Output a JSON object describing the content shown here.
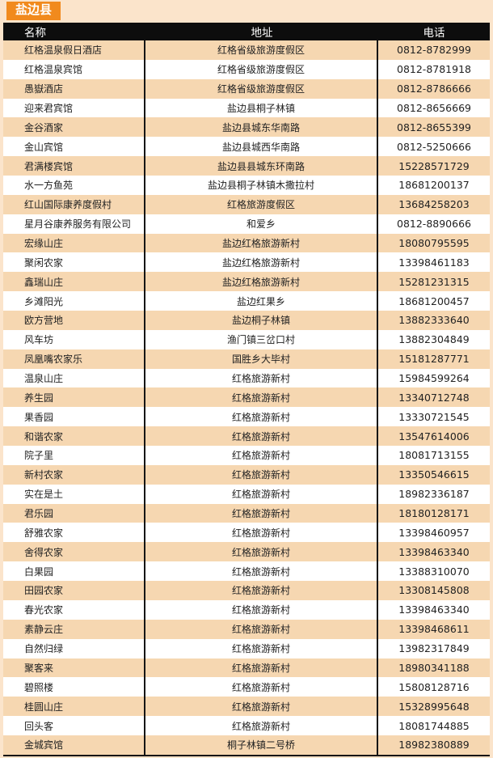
{
  "page": {
    "county_badge": "盐边县"
  },
  "colors": {
    "page_bg": "#fbe4cb",
    "badge_orange": "#f18a1d",
    "header_black": "#0d0d0d",
    "row_peach": "#f6d7b1",
    "row_white": "#ffffff",
    "text": "#222222"
  },
  "table": {
    "columns": [
      "名称",
      "地址",
      "电话"
    ],
    "rows": [
      {
        "name": "红格温泉假日酒店",
        "address": "红格省级旅游度假区",
        "phone": "0812-8782999"
      },
      {
        "name": "红格温泉宾馆",
        "address": "红格省级旅游度假区",
        "phone": "0812-8781918"
      },
      {
        "name": "愚嶽酒店",
        "address": "红格省级旅游度假区",
        "phone": "0812-8786666"
      },
      {
        "name": "迎来君宾馆",
        "address": "盐边县桐子林镇",
        "phone": "0812-8656669"
      },
      {
        "name": "金谷酒家",
        "address": "盐边县城东华南路",
        "phone": "0812-8655399"
      },
      {
        "name": "金山宾馆",
        "address": "盐边县城西华南路",
        "phone": "0812-5250666"
      },
      {
        "name": "君满楼宾馆",
        "address": "盐边县县城东环南路",
        "phone": "15228571729"
      },
      {
        "name": "水一方鱼苑",
        "address": "盐边县桐子林镇木撒拉村",
        "phone": "18681200137"
      },
      {
        "name": "红山国际康养度假村",
        "address": "红格旅游度假区",
        "phone": "13684258203"
      },
      {
        "name": "星月谷康养服务有限公司",
        "address": "和爱乡",
        "phone": "0812-8890666"
      },
      {
        "name": "宏缘山庄",
        "address": "盐边红格旅游新村",
        "phone": "18080795595"
      },
      {
        "name": "聚闲农家",
        "address": "盐边红格旅游新村",
        "phone": "13398461183"
      },
      {
        "name": "鑫瑞山庄",
        "address": "盐边红格旅游新村",
        "phone": "15281231315"
      },
      {
        "name": "乡滩阳光",
        "address": "盐边红果乡",
        "phone": "18681200457"
      },
      {
        "name": "欧方营地",
        "address": "盐边桐子林镇",
        "phone": "13882333640"
      },
      {
        "name": "风车坊",
        "address": "渔门镇三岔口村",
        "phone": "13882304849"
      },
      {
        "name": "凤凰嘴农家乐",
        "address": "国胜乡大毕村",
        "phone": "15181287771"
      },
      {
        "name": "温泉山庄",
        "address": "红格旅游新村",
        "phone": "15984599264"
      },
      {
        "name": "养生园",
        "address": "红格旅游新村",
        "phone": "13340712748"
      },
      {
        "name": "果香园",
        "address": "红格旅游新村",
        "phone": "13330721545"
      },
      {
        "name": "和谐农家",
        "address": "红格旅游新村",
        "phone": "13547614006"
      },
      {
        "name": "院子里",
        "address": "红格旅游新村",
        "phone": "18081713155"
      },
      {
        "name": "新村农家",
        "address": "红格旅游新村",
        "phone": "13350546615"
      },
      {
        "name": "实在是土",
        "address": "红格旅游新村",
        "phone": "18982336187"
      },
      {
        "name": "君乐园",
        "address": "红格旅游新村",
        "phone": "18180128171"
      },
      {
        "name": "舒雅农家",
        "address": "红格旅游新村",
        "phone": "13398460957"
      },
      {
        "name": "舍得农家",
        "address": "红格旅游新村",
        "phone": "13398463340"
      },
      {
        "name": "白果园",
        "address": "红格旅游新村",
        "phone": "13388310070"
      },
      {
        "name": "田园农家",
        "address": "红格旅游新村",
        "phone": "13308145808"
      },
      {
        "name": "春光农家",
        "address": "红格旅游新村",
        "phone": "13398463340"
      },
      {
        "name": "素静云庄",
        "address": "红格旅游新村",
        "phone": "13398468611"
      },
      {
        "name": "自然归绿",
        "address": "红格旅游新村",
        "phone": "13982317849"
      },
      {
        "name": "聚客来",
        "address": "红格旅游新村",
        "phone": "18980341188"
      },
      {
        "name": "碧照楼",
        "address": "红格旅游新村",
        "phone": "15808128716"
      },
      {
        "name": "桂圆山庄",
        "address": "红格旅游新村",
        "phone": "15328995648"
      },
      {
        "name": "回头客",
        "address": "红格旅游新村",
        "phone": "18081744885"
      },
      {
        "name": "金城宾馆",
        "address": "桐子林镇二号桥",
        "phone": "18982380889"
      }
    ]
  }
}
